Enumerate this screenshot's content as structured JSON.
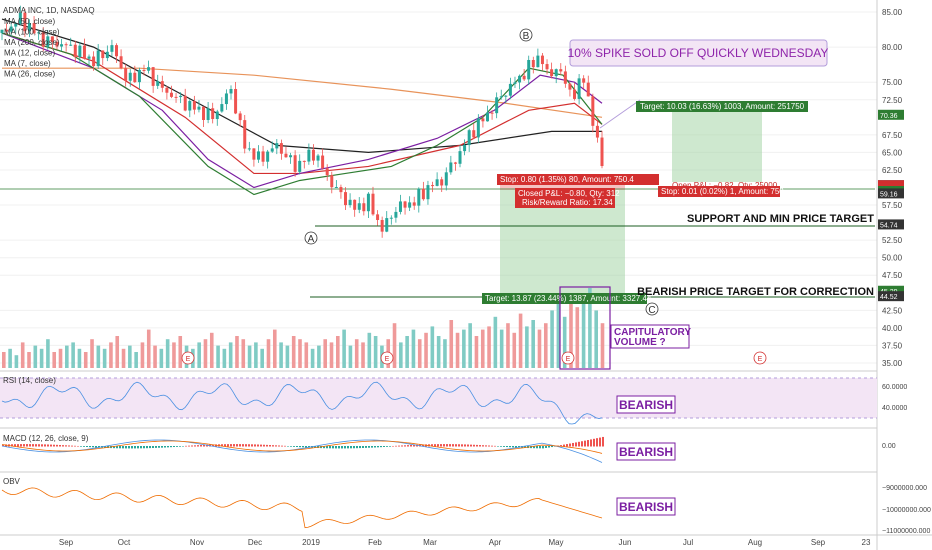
{
  "chart_data": {
    "type": "candlestick",
    "title": "ADMA INC, 1D, NASDAQ",
    "indicators_legend": [
      "MA (50, close)",
      "MA (100, close)",
      "MA (200, close)",
      "MA (12, close)",
      "MA (7, close)",
      "MA (26, close)"
    ],
    "x_labels": [
      "Sep",
      "Oct",
      "Nov",
      "Dec",
      "2019",
      "Feb",
      "Mar",
      "Apr",
      "May",
      "Jun",
      "Jul",
      "Aug",
      "Sep",
      "23"
    ],
    "y_ticks": [
      "85.00",
      "80.00",
      "75.00",
      "72.50",
      "67.50",
      "65.00",
      "62.50",
      "57.50",
      "52.50",
      "50.00",
      "47.50",
      "42.50",
      "40.00",
      "37.50",
      "35.00"
    ],
    "ylim": [
      34,
      86
    ],
    "price_path": [
      [
        0,
        82
      ],
      [
        8,
        84
      ],
      [
        18,
        81
      ],
      [
        30,
        80
      ],
      [
        40,
        78
      ],
      [
        48,
        80
      ],
      [
        55,
        75
      ],
      [
        62,
        77
      ],
      [
        70,
        74
      ],
      [
        80,
        72
      ],
      [
        92,
        70
      ],
      [
        100,
        74
      ],
      [
        106,
        66
      ],
      [
        112,
        64
      ],
      [
        120,
        66
      ],
      [
        128,
        63
      ],
      [
        136,
        65
      ],
      [
        145,
        60
      ],
      [
        154,
        57
      ],
      [
        160,
        58
      ],
      [
        166,
        54
      ],
      [
        172,
        57
      ],
      [
        180,
        58
      ],
      [
        186,
        60
      ],
      [
        192,
        61
      ],
      [
        200,
        65
      ],
      [
        205,
        68
      ],
      [
        211,
        70
      ],
      [
        218,
        73
      ],
      [
        224,
        75
      ],
      [
        230,
        77
      ],
      [
        235,
        79
      ],
      [
        238,
        76
      ],
      [
        242,
        77
      ],
      [
        246,
        75
      ],
      [
        250,
        73
      ],
      [
        254,
        76
      ],
      [
        258,
        69
      ],
      [
        262,
        64
      ]
    ],
    "ma_lines": [
      {
        "name": "MA (200, close)",
        "color": "#e8935a",
        "points": [
          [
            0,
            77
          ],
          [
            60,
            77
          ],
          [
            110,
            76
          ],
          [
            170,
            74
          ],
          [
            220,
            72
          ],
          [
            262,
            70
          ]
        ]
      },
      {
        "name": "MA (100, close)",
        "color": "#222222",
        "points": [
          [
            0,
            84
          ],
          [
            40,
            80
          ],
          [
            80,
            73
          ],
          [
            120,
            66
          ],
          [
            160,
            65
          ],
          [
            200,
            66
          ],
          [
            240,
            68
          ],
          [
            262,
            68
          ]
        ]
      },
      {
        "name": "MA (50, close)",
        "color": "#d32f2f",
        "points": [
          [
            0,
            82
          ],
          [
            40,
            78
          ],
          [
            80,
            70
          ],
          [
            110,
            62
          ],
          [
            130,
            62
          ],
          [
            160,
            63
          ],
          [
            200,
            66
          ],
          [
            230,
            71
          ],
          [
            250,
            72
          ],
          [
            262,
            69
          ]
        ]
      },
      {
        "name": "MA (26, close)",
        "color": "#7b1fa2",
        "points": [
          [
            0,
            82
          ],
          [
            40,
            77
          ],
          [
            70,
            71
          ],
          [
            90,
            64
          ],
          [
            110,
            60
          ],
          [
            130,
            62
          ],
          [
            160,
            64
          ],
          [
            190,
            67
          ],
          [
            215,
            71
          ],
          [
            235,
            76
          ],
          [
            250,
            75
          ],
          [
            262,
            72
          ]
        ]
      },
      {
        "name": "MA (12, close)",
        "color": "#2e7d32",
        "points": [
          [
            0,
            82
          ],
          [
            30,
            79
          ],
          [
            60,
            73
          ],
          [
            90,
            63
          ],
          [
            110,
            59
          ],
          [
            130,
            61
          ],
          [
            150,
            62
          ],
          [
            170,
            63
          ],
          [
            190,
            66
          ],
          [
            210,
            70
          ],
          [
            230,
            77
          ],
          [
            245,
            76
          ],
          [
            262,
            69
          ]
        ]
      }
    ],
    "volume": [
      5,
      6,
      4,
      8,
      5,
      7,
      6,
      9,
      5,
      6,
      7,
      8,
      6,
      5,
      9,
      7,
      6,
      8,
      10,
      6,
      7,
      5,
      8,
      12,
      7,
      6,
      9,
      8,
      10,
      7,
      6,
      8,
      9,
      11,
      7,
      6,
      8,
      10,
      9,
      7,
      8,
      6,
      9,
      12,
      8,
      7,
      10,
      9,
      8,
      6,
      7,
      9,
      8,
      10,
      12,
      7,
      9,
      8,
      11,
      10,
      7,
      9,
      14,
      8,
      10,
      12,
      9,
      11,
      13,
      10,
      9,
      15,
      11,
      12,
      14,
      10,
      12,
      13,
      16,
      12,
      14,
      11,
      17,
      13,
      15,
      12,
      14,
      18,
      20,
      16,
      22,
      19,
      21,
      25,
      18,
      14
    ],
    "annotations": {
      "spike": "10% SPIKE SOLD OFF QUICKLY WEDNESDAY",
      "support": "SUPPORT AND MIN PRICE TARGET",
      "bearish_target": "BEARISH PRICE TARGET FOR CORRECTION",
      "capitulatory": "CAPITULATORY VOLUME ?",
      "wave_a": "A",
      "wave_b": "B",
      "wave_c": "C",
      "target_long": "Target: 10.03 (16.63%) 1003, Amount: 251750",
      "stop_short": "Stop: 0.80 (1.35%) 80, Amount: 750.4",
      "closed_pl": "Closed P&L: −0.80, Qty: 312",
      "rr": "Risk/Reward Ratio: 17.34",
      "open_pl": "Open P&L: −0.82, Qty: 25000",
      "stop_small": "Stop: 0.01 (0.02%) 1, Amount: 750",
      "target_short": "Target: 13.87 (23.44%) 1387, Amount: 3327.44"
    },
    "price_tags": [
      {
        "label": "70.36",
        "color": "#2e7d32",
        "value": 70.36
      },
      {
        "label": "60.33",
        "color": "#333333",
        "value": 60.33
      },
      {
        "label": "60.32",
        "color": "#d32f2f",
        "value": 60.32
      },
      {
        "label": "59.96",
        "color": "#d32f2f",
        "value": 59.96
      },
      {
        "label": "59.50",
        "color": "#2e7d32",
        "value": 59.5
      },
      {
        "label": "59.16",
        "color": "#333333",
        "value": 59.16
      },
      {
        "label": "54.74",
        "color": "#333333",
        "value": 54.74
      },
      {
        "label": "45.29",
        "color": "#2e7d32",
        "value": 45.29
      },
      {
        "label": "44.52",
        "color": "#333333",
        "value": 44.52
      }
    ],
    "rsi": {
      "label": "RSI (14, close)",
      "ticks": [
        "60.0000",
        "40.0000"
      ],
      "verdict": "BEARISH"
    },
    "macd": {
      "label": "MACD (12, 26, close, 9)",
      "ticks": [
        "0.00"
      ],
      "verdict": "BEARISH"
    },
    "obv": {
      "label": "OBV",
      "ticks": [
        "−9000000.000",
        "−10000000.000",
        "−11000000.000"
      ],
      "verdict": "BEARISH"
    }
  }
}
